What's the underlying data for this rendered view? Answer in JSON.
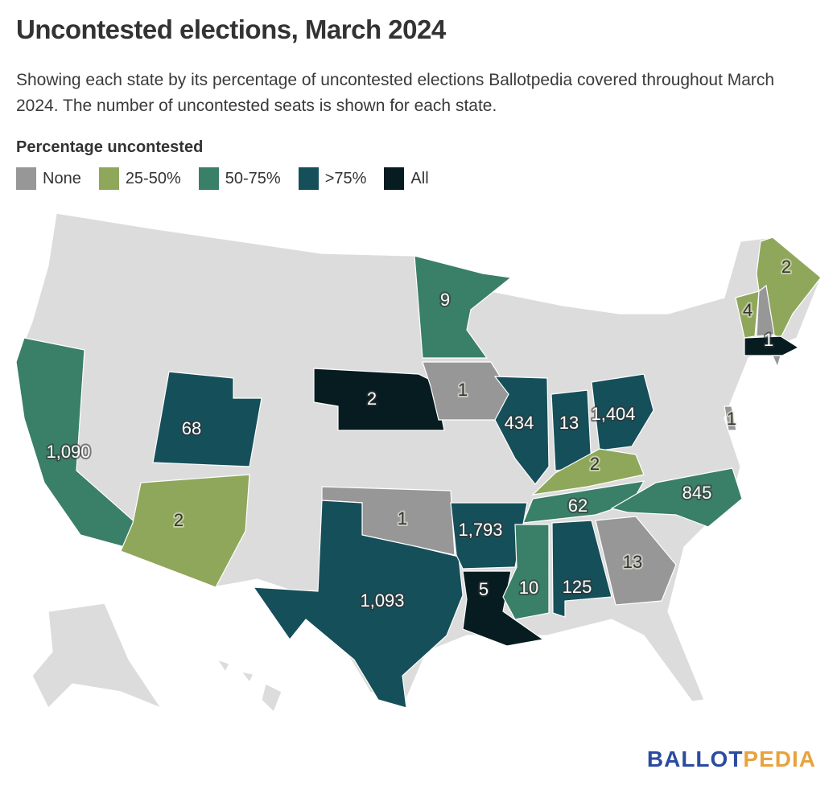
{
  "title": "Uncontested elections, March 2024",
  "subtitle": "Showing each state by its percentage of uncontested elections Ballotpedia covered throughout March 2024. The number of uncontested seats is shown for each state.",
  "legend": {
    "title": "Percentage uncontested",
    "items": [
      {
        "key": "none",
        "label": "None",
        "color": "#979797"
      },
      {
        "key": "q2",
        "label": "25-50%",
        "color": "#8fa75a"
      },
      {
        "key": "q3",
        "label": "50-75%",
        "color": "#3a7f68"
      },
      {
        "key": "q4",
        "label": ">75%",
        "color": "#154f5a"
      },
      {
        "key": "all",
        "label": "All",
        "color": "#071c21"
      }
    ]
  },
  "no_data_color": "#dcdcdc",
  "states": [
    {
      "state": "CA",
      "category": "q3",
      "seats": "1,090"
    },
    {
      "state": "UT",
      "category": "q4",
      "seats": "68"
    },
    {
      "state": "AZ",
      "category": "q2",
      "seats": "2"
    },
    {
      "state": "NE",
      "category": "all",
      "seats": "2"
    },
    {
      "state": "MN",
      "category": "q3",
      "seats": "9"
    },
    {
      "state": "IA",
      "category": "none",
      "seats": "1"
    },
    {
      "state": "IL",
      "category": "q4",
      "seats": "434"
    },
    {
      "state": "IN",
      "category": "q4",
      "seats": "13"
    },
    {
      "state": "OH",
      "category": "q4",
      "seats": "1,404"
    },
    {
      "state": "KY",
      "category": "q2",
      "seats": "2"
    },
    {
      "state": "TN",
      "category": "q3",
      "seats": "62"
    },
    {
      "state": "NC",
      "category": "q3",
      "seats": "845"
    },
    {
      "state": "OK",
      "category": "none",
      "seats": "1"
    },
    {
      "state": "TX",
      "category": "q4",
      "seats": "1,093"
    },
    {
      "state": "AR",
      "category": "q4",
      "seats": "1,793"
    },
    {
      "state": "LA",
      "category": "all",
      "seats": "5"
    },
    {
      "state": "MS",
      "category": "q3",
      "seats": "10"
    },
    {
      "state": "AL",
      "category": "q4",
      "seats": "125"
    },
    {
      "state": "GA",
      "category": "none",
      "seats": "13"
    },
    {
      "state": "ME",
      "category": "q2",
      "seats": "2"
    },
    {
      "state": "VT",
      "category": "q2",
      "seats": "4"
    },
    {
      "state": "NH",
      "category": "none",
      "seats": ""
    },
    {
      "state": "MA",
      "category": "all",
      "seats": "1"
    },
    {
      "state": "RI",
      "category": "none",
      "seats": ""
    },
    {
      "state": "DE",
      "category": "none",
      "seats": "1"
    }
  ],
  "logo": {
    "part1": "BALLOT",
    "part2": "PEDIA"
  }
}
